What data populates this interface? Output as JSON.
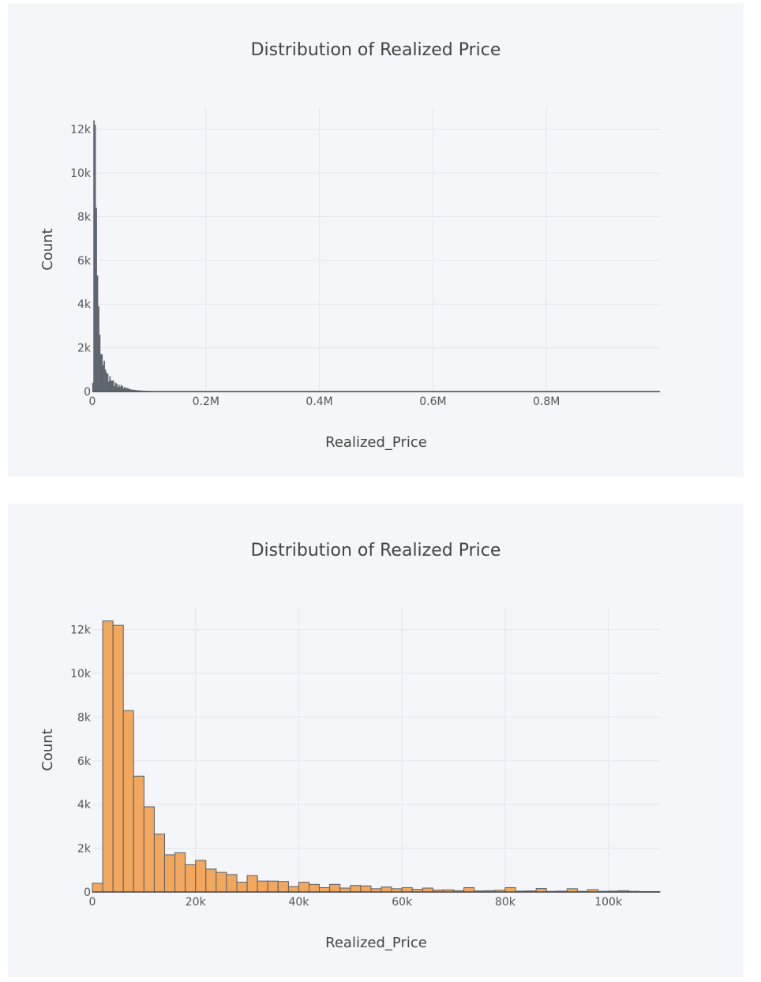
{
  "chart_data": [
    {
      "type": "bar",
      "title": "Distribution of Realized Price",
      "xlabel": "Realized_Price",
      "ylabel": "Count",
      "xlim": [
        0,
        1000000
      ],
      "ylim": [
        0,
        13000
      ],
      "x_ticks": [
        0,
        200000,
        400000,
        600000,
        800000
      ],
      "x_tick_labels": [
        "0",
        "0.2M",
        "0.4M",
        "0.6M",
        "0.8M"
      ],
      "y_ticks": [
        0,
        2000,
        4000,
        6000,
        8000,
        10000,
        12000
      ],
      "y_tick_labels": [
        "0",
        "2k",
        "4k",
        "6k",
        "8k",
        "10k",
        "12k"
      ],
      "grid": true,
      "bar_color": "#5f6670",
      "bin_width": 2000,
      "bin_start": 0,
      "values": [
        400,
        12400,
        12200,
        8400,
        5300,
        3900,
        2600,
        1700,
        1700,
        1200,
        1400,
        1000,
        850,
        800,
        450,
        700,
        500,
        500,
        500,
        250,
        400,
        350,
        200,
        300,
        200,
        300,
        250,
        150,
        200,
        150,
        150,
        150,
        100,
        100,
        80,
        80,
        70,
        60,
        60,
        50,
        50,
        45,
        40,
        40,
        35,
        30,
        30,
        25,
        25,
        20,
        20,
        18,
        16,
        15,
        14,
        12,
        12,
        10,
        10,
        9,
        8,
        8,
        7,
        7,
        6,
        6,
        5,
        5,
        5,
        4,
        4,
        4,
        3,
        3,
        3,
        3,
        2,
        2,
        2,
        2,
        2,
        2,
        2,
        2,
        2,
        1,
        1,
        1,
        1,
        1,
        1,
        1,
        1,
        1,
        1,
        1,
        1,
        1,
        1,
        1
      ]
    },
    {
      "type": "bar",
      "title": "Distribution of Realized Price",
      "xlabel": "Realized_Price",
      "ylabel": "Count",
      "xlim": [
        0,
        110000
      ],
      "ylim": [
        0,
        13000
      ],
      "x_ticks": [
        0,
        20000,
        40000,
        60000,
        80000,
        100000
      ],
      "x_tick_labels": [
        "0",
        "20k",
        "40k",
        "60k",
        "80k",
        "100k"
      ],
      "y_ticks": [
        0,
        2000,
        4000,
        6000,
        8000,
        10000,
        12000
      ],
      "y_tick_labels": [
        "0",
        "2k",
        "4k",
        "6k",
        "8k",
        "10k",
        "12k"
      ],
      "grid": true,
      "bar_color": "#f2a75f",
      "bin_width": 2000,
      "bin_start": 0,
      "values": [
        400,
        12400,
        12200,
        8300,
        5300,
        3900,
        2650,
        1700,
        1800,
        1250,
        1450,
        1050,
        900,
        800,
        450,
        750,
        500,
        500,
        480,
        250,
        450,
        350,
        200,
        350,
        180,
        300,
        280,
        150,
        230,
        150,
        200,
        120,
        180,
        90,
        100,
        60,
        200,
        50,
        60,
        80,
        200,
        40,
        50,
        160,
        30,
        40,
        150,
        30,
        110,
        30,
        40,
        60,
        30,
        20,
        20,
        30,
        50
      ]
    }
  ]
}
